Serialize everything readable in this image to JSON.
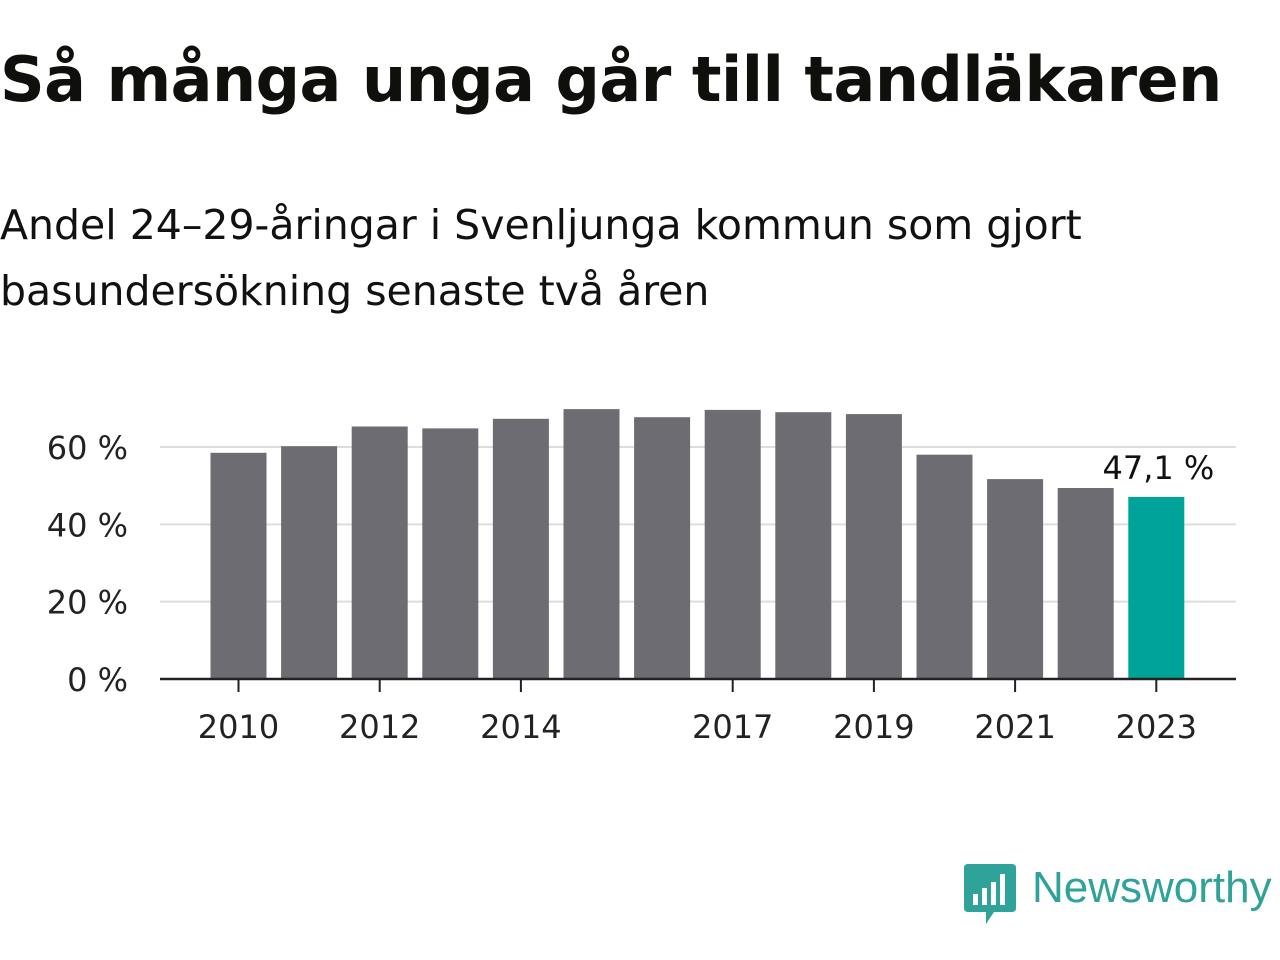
{
  "header": {
    "title": "Så många unga går till tandläkaren",
    "subtitle": "Andel 24–29-åringar i Svenljunga kommun som gjort basundersökning senaste två åren"
  },
  "chart_data": {
    "type": "bar",
    "categories": [
      "2010",
      "2011",
      "2012",
      "2013",
      "2014",
      "2015",
      "2016",
      "2017",
      "2018",
      "2019",
      "2020",
      "2021",
      "2022",
      "2023"
    ],
    "values": [
      58.5,
      60.2,
      65.3,
      64.8,
      67.3,
      69.8,
      67.7,
      69.6,
      69.0,
      68.5,
      58.0,
      51.7,
      49.4,
      47.1
    ],
    "x_tick_labels": [
      "2010",
      "",
      "2012",
      "",
      "2014",
      "",
      "",
      "2017",
      "",
      "2019",
      "",
      "2021",
      "",
      "2023"
    ],
    "y_ticks": [
      0,
      20,
      40,
      60
    ],
    "y_tick_labels": [
      "0 %",
      "20 %",
      "40 %",
      "60 %"
    ],
    "ylim": [
      0,
      70
    ],
    "xlabel": "",
    "ylabel": "",
    "grid": true,
    "highlight_index": 13,
    "highlight_label": "47,1 %",
    "colors": {
      "bar": "#6d6c72",
      "highlight": "#00a39a",
      "grid": "#dddddd",
      "axis": "#222222"
    }
  },
  "brand": {
    "name": "Newsworthy",
    "icon": "newsworthy-logo-icon",
    "color": "#2fa399"
  }
}
